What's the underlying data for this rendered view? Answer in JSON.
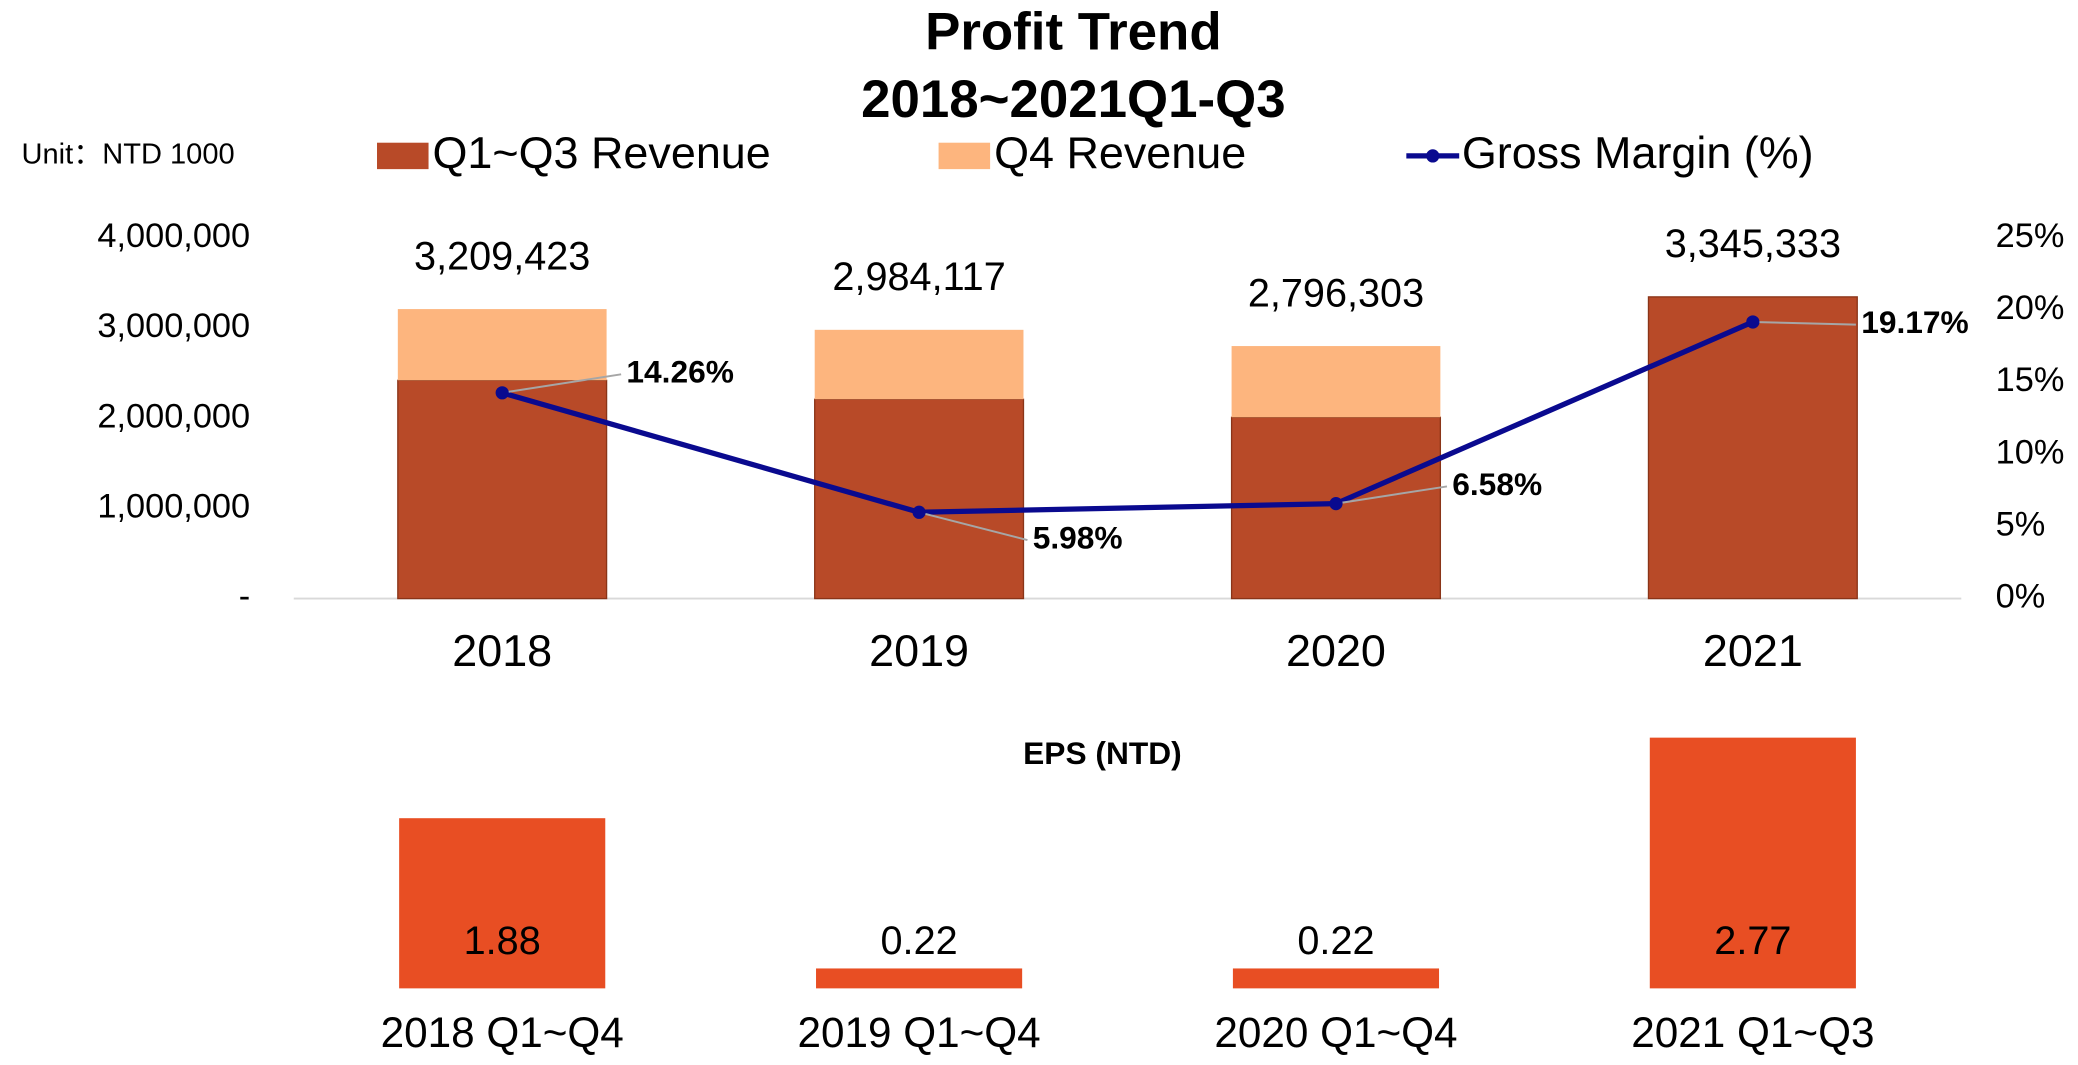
{
  "chart_data": [
    {
      "type": "combo",
      "title": "Profit Trend",
      "subtitle": "2018~2021Q1-Q3",
      "unit_label": "Unit：NTD 1000",
      "categories": [
        "2018",
        "2019",
        "2020",
        "2021"
      ],
      "series": [
        {
          "name": "Q1~Q3 Revenue",
          "type": "bar",
          "color": "#b84a28",
          "values": [
            2420000,
            2210000,
            2010000,
            3345333
          ]
        },
        {
          "name": "Q4 Revenue",
          "type": "bar",
          "color": "#fdb57e",
          "values": [
            790000,
            770000,
            790000,
            0
          ]
        },
        {
          "name": "Gross Margin (%)",
          "type": "line",
          "axis": "y2",
          "color": "#0a0a8f",
          "values": [
            14.26,
            5.98,
            6.58,
            19.17
          ],
          "value_labels": [
            "14.26%",
            "5.98%",
            "6.58%",
            "19.17%"
          ]
        }
      ],
      "total_labels": [
        "3,209,423",
        "2,984,117",
        "2,796,303",
        "3,345,333"
      ],
      "stacked": true,
      "ylim": [
        0,
        4000000
      ],
      "yticks": [
        {
          "value": 0,
          "label": "-"
        },
        {
          "value": 1000000,
          "label": "1,000,000"
        },
        {
          "value": 2000000,
          "label": "2,000,000"
        },
        {
          "value": 3000000,
          "label": "3,000,000"
        },
        {
          "value": 4000000,
          "label": "4,000,000"
        }
      ],
      "y2lim": [
        0,
        25
      ],
      "y2ticks": [
        {
          "value": 0,
          "label": "0%"
        },
        {
          "value": 5,
          "label": "5%"
        },
        {
          "value": 10,
          "label": "10%"
        },
        {
          "value": 15,
          "label": "15%"
        },
        {
          "value": 20,
          "label": "20%"
        },
        {
          "value": 25,
          "label": "25%"
        }
      ],
      "legend": "top"
    },
    {
      "type": "bar",
      "title": "EPS (NTD)",
      "categories": [
        "2018 Q1~Q4",
        "2019 Q1~Q4",
        "2020 Q1~Q4",
        "2021 Q1~Q3"
      ],
      "values": [
        1.88,
        0.22,
        0.22,
        2.77
      ],
      "color": "#e84e23"
    }
  ]
}
